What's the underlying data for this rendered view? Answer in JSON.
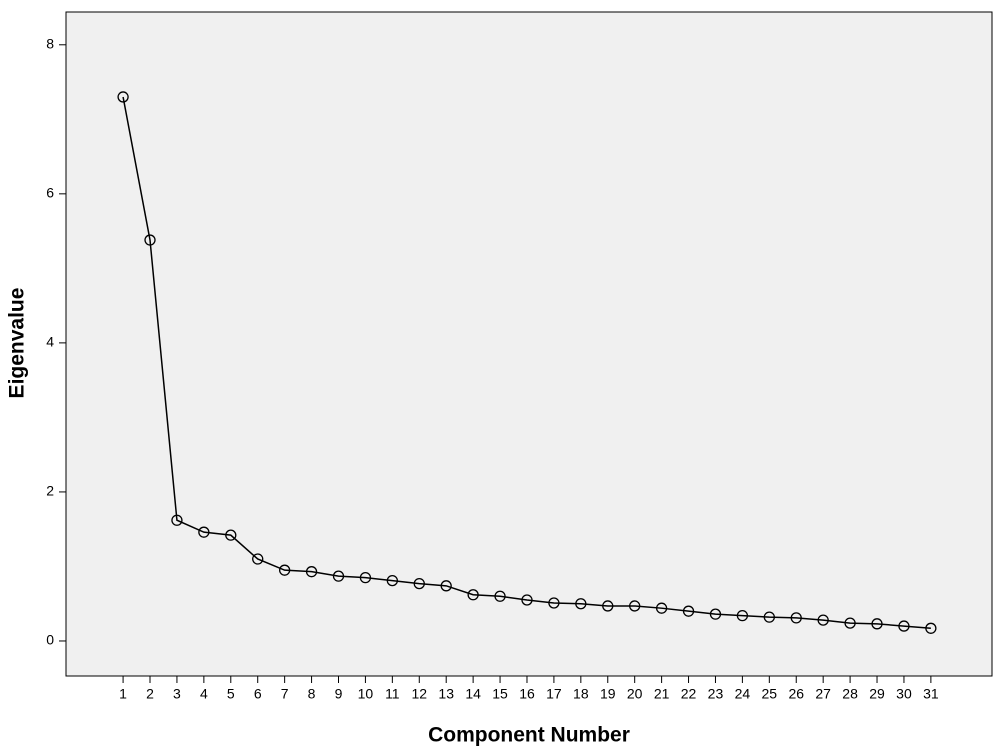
{
  "chart_data": {
    "type": "line",
    "x_label": "Component Number",
    "y_label": "Eigenvalue",
    "x": [
      1,
      2,
      3,
      4,
      5,
      6,
      7,
      8,
      9,
      10,
      11,
      12,
      13,
      14,
      15,
      16,
      17,
      18,
      19,
      20,
      21,
      22,
      23,
      24,
      25,
      26,
      27,
      28,
      29,
      30,
      31
    ],
    "values": [
      7.3,
      5.38,
      1.62,
      1.46,
      1.42,
      1.1,
      0.95,
      0.93,
      0.87,
      0.85,
      0.81,
      0.77,
      0.74,
      0.62,
      0.6,
      0.55,
      0.51,
      0.5,
      0.47,
      0.47,
      0.44,
      0.4,
      0.36,
      0.34,
      0.32,
      0.31,
      0.28,
      0.24,
      0.23,
      0.2,
      0.17
    ],
    "color": "#000000",
    "xlim": [
      -1.12,
      33.27
    ],
    "xticks": [
      1,
      2,
      3,
      4,
      5,
      6,
      7,
      8,
      9,
      10,
      11,
      12,
      13,
      14,
      15,
      16,
      17,
      18,
      19,
      20,
      21,
      22,
      23,
      24,
      25,
      26,
      27,
      28,
      29,
      30,
      31
    ],
    "ylim": [
      -0.47,
      8.44
    ],
    "yticks": [
      0,
      2,
      4,
      6,
      8
    ],
    "grid": false
  }
}
